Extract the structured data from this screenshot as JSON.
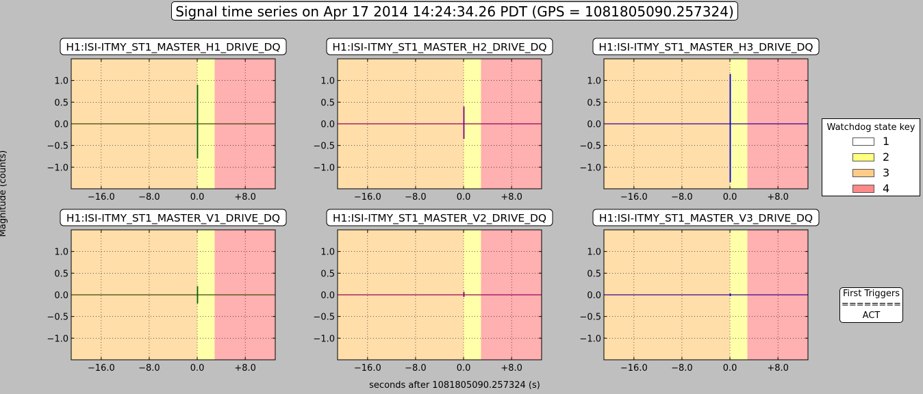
{
  "figure": {
    "title": "Signal time series on Apr 17 2014 14:24:34.26 PDT (GPS = 1081805090.257324)",
    "ylabel": "Magnitude (counts)",
    "xlabel": "seconds after 1081805090.257324 (s)"
  },
  "legend": {
    "title": "Watchdog state key",
    "items": [
      {
        "label": "1",
        "color": "#ffffff"
      },
      {
        "label": "2",
        "color": "#ffff80"
      },
      {
        "label": "3",
        "color": "#ffcc88"
      },
      {
        "label": "4",
        "color": "#ff8888"
      }
    ]
  },
  "triggers": {
    "title": "First Triggers",
    "separator": "========",
    "value": "ACT"
  },
  "chart_data": [
    {
      "type": "line",
      "title": "H1:ISI-ITMY_ST1_MASTER_H1_DRIVE_DQ",
      "xlim": [
        -21,
        13
      ],
      "ylim": [
        -1.5,
        1.5
      ],
      "xticks": [
        -16,
        -8,
        0,
        8
      ],
      "xtick_labels": [
        "−16.0",
        "−8.0",
        "0.0",
        "+8.0"
      ],
      "yticks": [
        1.0,
        0.5,
        0.0,
        -0.5,
        -1.0
      ],
      "ytick_labels": [
        "1.0",
        "0.5",
        "0.0",
        "−0.5",
        "−1.0"
      ],
      "grid": true,
      "state_regions": [
        {
          "state": 3,
          "x0": -21,
          "x1": 0
        },
        {
          "state": 2,
          "x0": 0,
          "x1": 2.9
        },
        {
          "state": 4,
          "x0": 2.9,
          "x1": 13
        }
      ],
      "series": [
        {
          "color": "#006400",
          "spike": {
            "x": 0.05,
            "min": -0.8,
            "max": 0.9
          }
        }
      ]
    },
    {
      "type": "line",
      "title": "H1:ISI-ITMY_ST1_MASTER_H2_DRIVE_DQ",
      "xlim": [
        -21,
        13
      ],
      "ylim": [
        -1.5,
        1.5
      ],
      "xticks": [
        -16,
        -8,
        0,
        8
      ],
      "xtick_labels": [
        "−16.0",
        "−8.0",
        "0.0",
        "+8.0"
      ],
      "yticks": [
        1.0,
        0.5,
        0.0,
        -0.5,
        -1.0
      ],
      "ytick_labels": [
        "1.0",
        "0.5",
        "0.0",
        "−0.5",
        "−1.0"
      ],
      "grid": true,
      "state_regions": [
        {
          "state": 3,
          "x0": -21,
          "x1": 0
        },
        {
          "state": 2,
          "x0": 0,
          "x1": 2.9
        },
        {
          "state": 4,
          "x0": 2.9,
          "x1": 13
        }
      ],
      "series": [
        {
          "color": "#800080",
          "spike": {
            "x": 0.05,
            "min": -0.35,
            "max": 0.4
          }
        }
      ]
    },
    {
      "type": "line",
      "title": "H1:ISI-ITMY_ST1_MASTER_H3_DRIVE_DQ",
      "xlim": [
        -21,
        13
      ],
      "ylim": [
        -1.5,
        1.5
      ],
      "xticks": [
        -16,
        -8,
        0,
        8
      ],
      "xtick_labels": [
        "−16.0",
        "−8.0",
        "0.0",
        "+8.0"
      ],
      "yticks": [
        1.0,
        0.5,
        0.0,
        -0.5,
        -1.0
      ],
      "ytick_labels": [
        "1.0",
        "0.5",
        "0.0",
        "−0.5",
        "−1.0"
      ],
      "grid": true,
      "state_regions": [
        {
          "state": 3,
          "x0": -21,
          "x1": 0
        },
        {
          "state": 2,
          "x0": 0,
          "x1": 2.9
        },
        {
          "state": 4,
          "x0": 2.9,
          "x1": 13
        }
      ],
      "series": [
        {
          "color": "#0000cc",
          "spike": {
            "x": 0.05,
            "min": -1.35,
            "max": 1.15
          }
        }
      ]
    },
    {
      "type": "line",
      "title": "H1:ISI-ITMY_ST1_MASTER_V1_DRIVE_DQ",
      "xlim": [
        -21,
        13
      ],
      "ylim": [
        -1.5,
        1.5
      ],
      "xticks": [
        -16,
        -8,
        0,
        8
      ],
      "xtick_labels": [
        "−16.0",
        "−8.0",
        "0.0",
        "+8.0"
      ],
      "yticks": [
        1.0,
        0.5,
        0.0,
        -0.5,
        -1.0
      ],
      "ytick_labels": [
        "1.0",
        "0.5",
        "0.0",
        "−0.5",
        "−1.0"
      ],
      "grid": true,
      "state_regions": [
        {
          "state": 3,
          "x0": -21,
          "x1": 0
        },
        {
          "state": 2,
          "x0": 0,
          "x1": 2.9
        },
        {
          "state": 4,
          "x0": 2.9,
          "x1": 13
        }
      ],
      "series": [
        {
          "color": "#006400",
          "spike": {
            "x": 0.05,
            "min": -0.2,
            "max": 0.2
          }
        }
      ]
    },
    {
      "type": "line",
      "title": "H1:ISI-ITMY_ST1_MASTER_V2_DRIVE_DQ",
      "xlim": [
        -21,
        13
      ],
      "ylim": [
        -1.5,
        1.5
      ],
      "xticks": [
        -16,
        -8,
        0,
        8
      ],
      "xtick_labels": [
        "−16.0",
        "−8.0",
        "0.0",
        "+8.0"
      ],
      "yticks": [
        1.0,
        0.5,
        0.0,
        -0.5,
        -1.0
      ],
      "ytick_labels": [
        "1.0",
        "0.5",
        "0.0",
        "−0.5",
        "−1.0"
      ],
      "grid": true,
      "state_regions": [
        {
          "state": 3,
          "x0": -21,
          "x1": 0
        },
        {
          "state": 2,
          "x0": 0,
          "x1": 2.9
        },
        {
          "state": 4,
          "x0": 2.9,
          "x1": 13
        }
      ],
      "series": [
        {
          "color": "#800080",
          "spike": {
            "x": 0.05,
            "min": -0.05,
            "max": 0.07
          }
        }
      ]
    },
    {
      "type": "line",
      "title": "H1:ISI-ITMY_ST1_MASTER_V3_DRIVE_DQ",
      "xlim": [
        -21,
        13
      ],
      "ylim": [
        -1.5,
        1.5
      ],
      "xticks": [
        -16,
        -8,
        0,
        8
      ],
      "xtick_labels": [
        "−16.0",
        "−8.0",
        "0.0",
        "+8.0"
      ],
      "yticks": [
        1.0,
        0.5,
        0.0,
        -0.5,
        -1.0
      ],
      "ytick_labels": [
        "1.0",
        "0.5",
        "0.0",
        "−0.5",
        "−1.0"
      ],
      "grid": true,
      "state_regions": [
        {
          "state": 3,
          "x0": -21,
          "x1": 0
        },
        {
          "state": 2,
          "x0": 0,
          "x1": 2.9
        },
        {
          "state": 4,
          "x0": 2.9,
          "x1": 13
        }
      ],
      "series": [
        {
          "color": "#0000cc",
          "spike": {
            "x": 0.05,
            "min": -0.03,
            "max": 0.03
          }
        }
      ]
    }
  ]
}
